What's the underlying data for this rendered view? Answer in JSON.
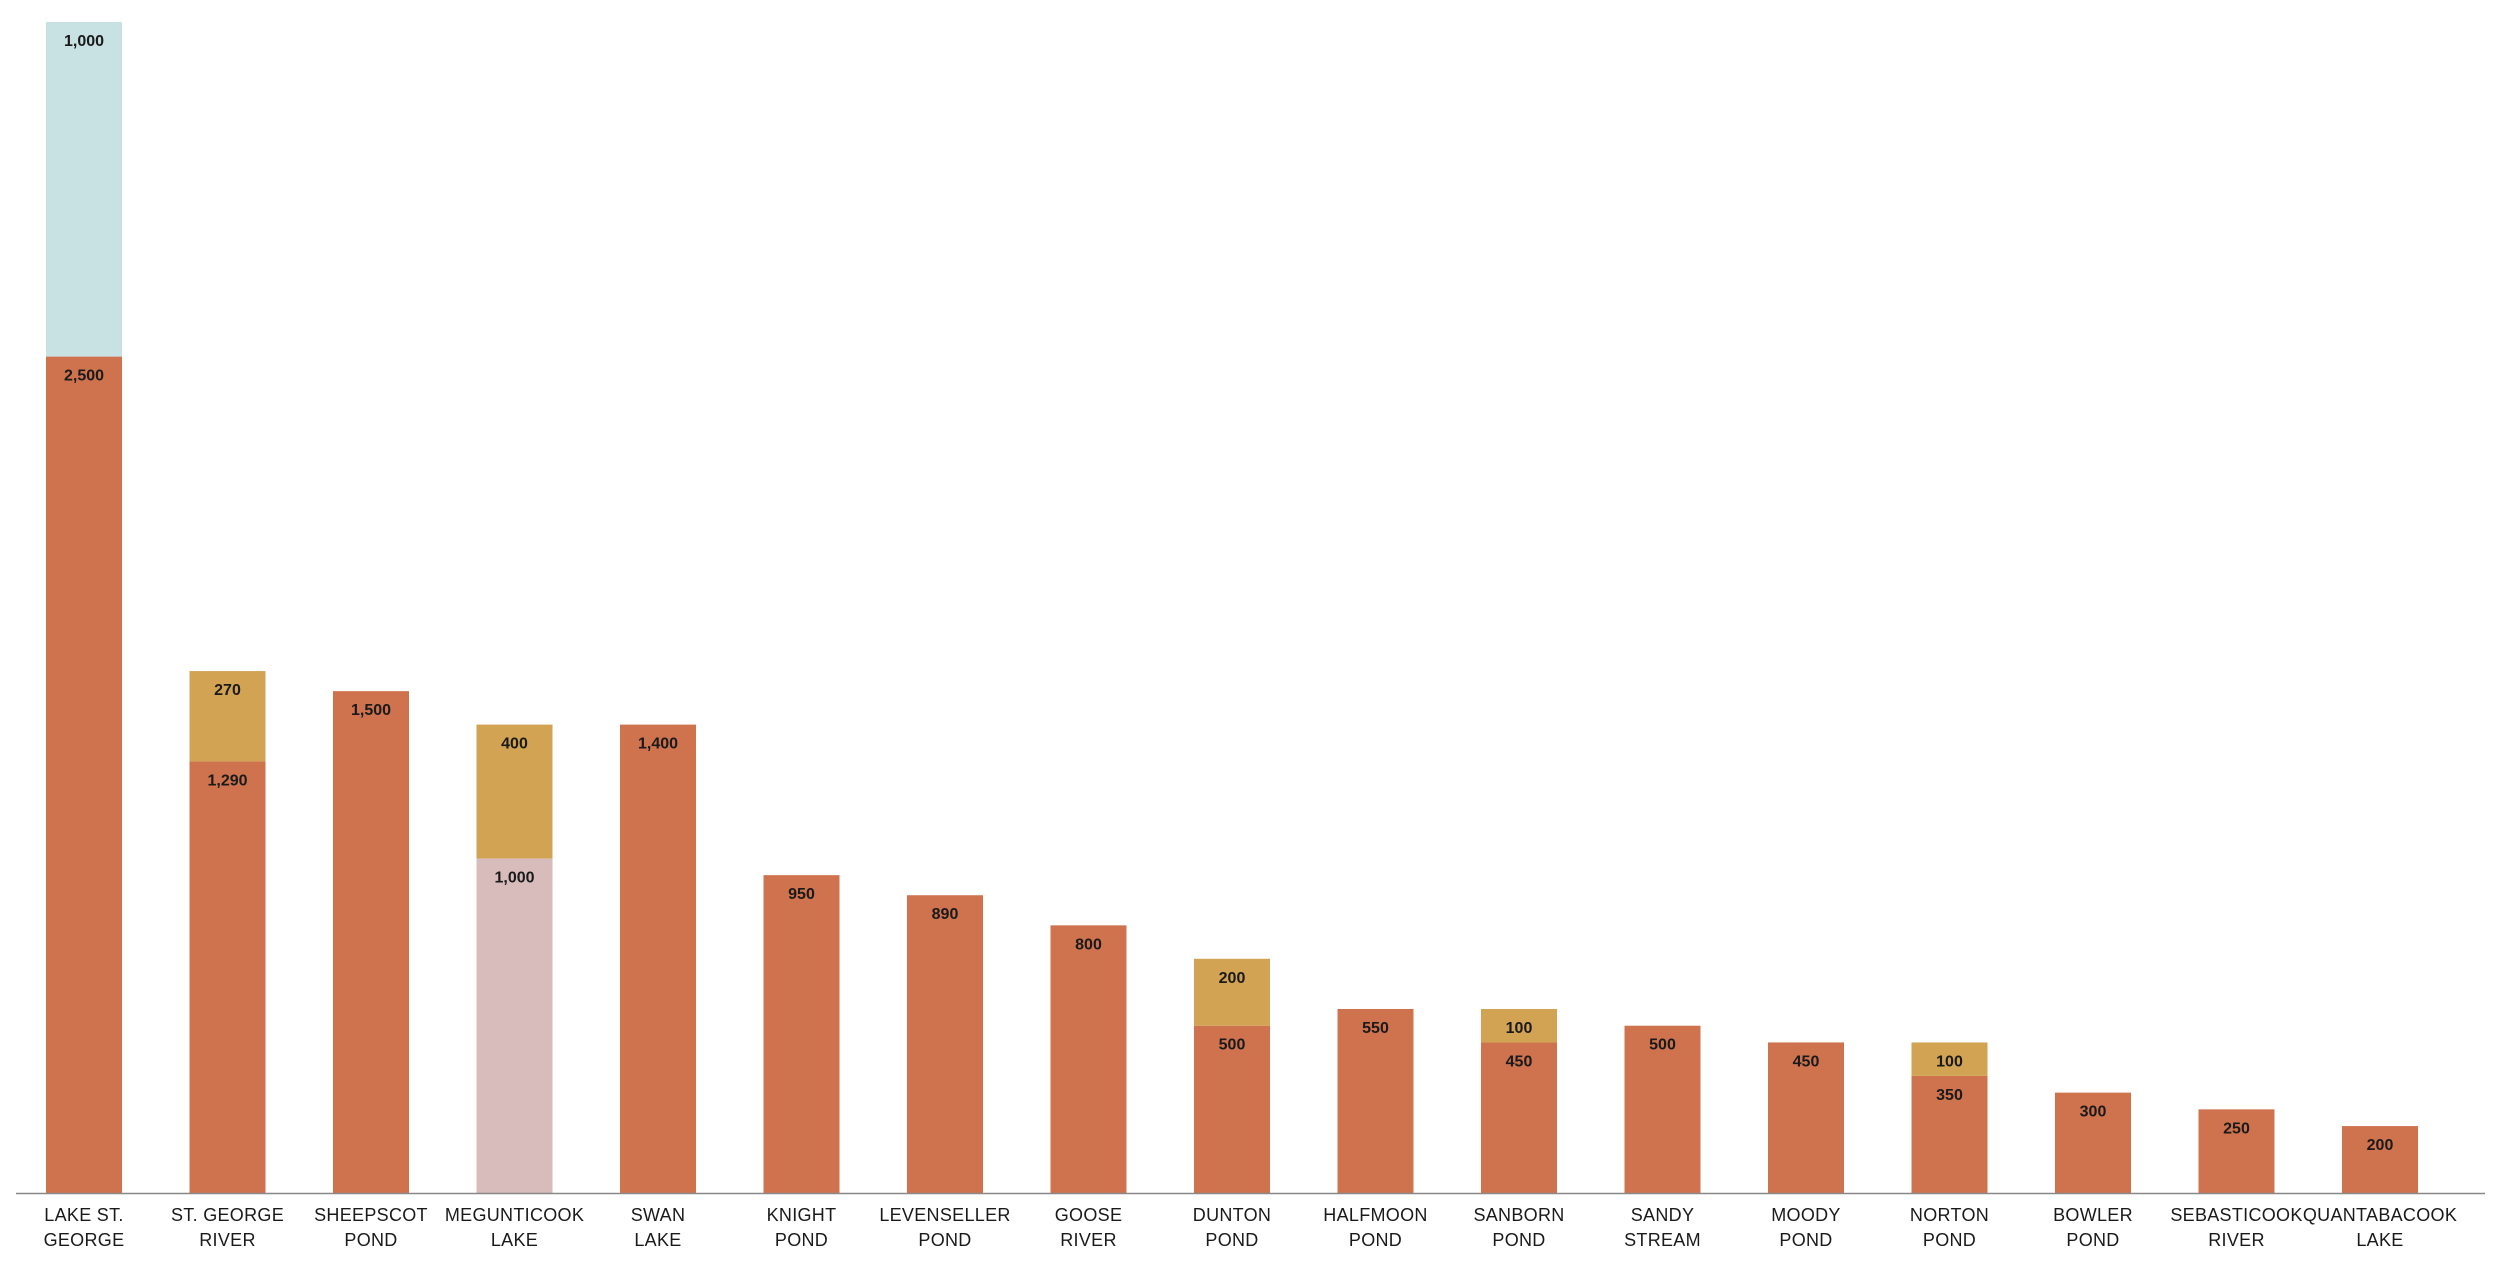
{
  "chart_data": {
    "type": "bar",
    "stacked": true,
    "categories": [
      "LAKE ST. GEORGE",
      "ST. GEORGE RIVER",
      "SHEEPSCOT POND",
      "MEGUNTICOOK LAKE",
      "SWAN LAKE",
      "KNIGHT POND",
      "LEVENSELLER POND",
      "GOOSE RIVER",
      "DUNTON POND",
      "HALFMOON POND",
      "SANBORN POND",
      "SANDY STREAM",
      "MOODY POND",
      "NORTON POND",
      "BOWLER POND",
      "SEBASTICOOK RIVER",
      "QUANTABACOOK LAKE"
    ],
    "category_lines": [
      [
        "LAKE ST.",
        "GEORGE"
      ],
      [
        "ST. GEORGE",
        "RIVER"
      ],
      [
        "SHEEPSCOT",
        "POND"
      ],
      [
        "MEGUNTICOOK",
        "LAKE"
      ],
      [
        "SWAN",
        "LAKE"
      ],
      [
        "KNIGHT",
        "POND"
      ],
      [
        "LEVENSELLER",
        "POND"
      ],
      [
        "GOOSE",
        "RIVER"
      ],
      [
        "DUNTON",
        "POND"
      ],
      [
        "HALFMOON",
        "POND"
      ],
      [
        "SANBORN",
        "POND"
      ],
      [
        "SANDY",
        "STREAM"
      ],
      [
        "MOODY",
        "POND"
      ],
      [
        "NORTON",
        "POND"
      ],
      [
        "BOWLER",
        "POND"
      ],
      [
        "SEBASTICOOK",
        "RIVER"
      ],
      [
        "QUANTABACOOK",
        "LAKE"
      ]
    ],
    "segments": [
      [
        {
          "value": 2500,
          "label": "2,500",
          "color": "#cf734f"
        },
        {
          "value": 1000,
          "label": "1,000",
          "color": "#c8e1e3"
        }
      ],
      [
        {
          "value": 1290,
          "label": "1,290",
          "color": "#cf734f"
        },
        {
          "value": 270,
          "label": "270",
          "color": "#d1a352"
        }
      ],
      [
        {
          "value": 1500,
          "label": "1,500",
          "color": "#cf734f"
        }
      ],
      [
        {
          "value": 1000,
          "label": "1,000",
          "color": "#d8bcbc"
        },
        {
          "value": 400,
          "label": "400",
          "color": "#d1a352"
        }
      ],
      [
        {
          "value": 1400,
          "label": "1,400",
          "color": "#cf734f"
        }
      ],
      [
        {
          "value": 950,
          "label": "950",
          "color": "#cf734f"
        }
      ],
      [
        {
          "value": 890,
          "label": "890",
          "color": "#cf734f"
        }
      ],
      [
        {
          "value": 800,
          "label": "800",
          "color": "#cf734f"
        }
      ],
      [
        {
          "value": 500,
          "label": "500",
          "color": "#cf734f"
        },
        {
          "value": 200,
          "label": "200",
          "color": "#d1a352"
        }
      ],
      [
        {
          "value": 550,
          "label": "550",
          "color": "#cf734f"
        }
      ],
      [
        {
          "value": 450,
          "label": "450",
          "color": "#cf734f"
        },
        {
          "value": 100,
          "label": "100",
          "color": "#d1a352"
        }
      ],
      [
        {
          "value": 500,
          "label": "500",
          "color": "#cf734f"
        }
      ],
      [
        {
          "value": 450,
          "label": "450",
          "color": "#cf734f"
        }
      ],
      [
        {
          "value": 350,
          "label": "350",
          "color": "#cf734f"
        },
        {
          "value": 100,
          "label": "100",
          "color": "#d1a352"
        }
      ],
      [
        {
          "value": 300,
          "label": "300",
          "color": "#cf734f"
        }
      ],
      [
        {
          "value": 250,
          "label": "250",
          "color": "#cf734f"
        }
      ],
      [
        {
          "value": 200,
          "label": "200",
          "color": "#cf734f"
        }
      ]
    ],
    "ylim": [
      0,
      3500
    ],
    "title": "",
    "xlabel": "",
    "ylabel": "",
    "grid": false,
    "legend": "none",
    "axis_color": "#888888"
  }
}
